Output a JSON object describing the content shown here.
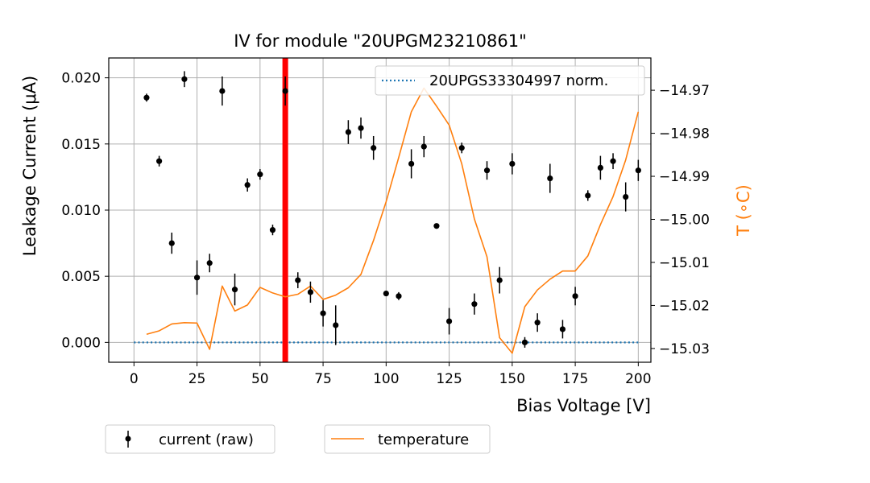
{
  "chart_data": {
    "type": "scatter",
    "title": "IV for module \"20UPGM23210861\"",
    "xlabel": "Bias Voltage [V]",
    "ylabel": "Leakage Current (μA)",
    "y2label": "T (∘C)",
    "xlim": [
      -10,
      205
    ],
    "ylim": [
      -0.0015,
      0.0215
    ],
    "y2lim": [
      -15.0332,
      -14.9625
    ],
    "xticks": [
      0,
      25,
      50,
      75,
      100,
      125,
      150,
      175,
      200
    ],
    "yticks": [
      "0.000",
      "0.005",
      "0.010",
      "0.015",
      "0.020"
    ],
    "y2ticks": [
      "−15.03",
      "−15.02",
      "−15.01",
      "−15.00",
      "−14.99",
      "−14.98",
      "−14.97"
    ],
    "grid": true,
    "legend_inside": {
      "position": "top-right",
      "label": "20UPGS33304997 norm."
    },
    "legend_below": [
      {
        "label": "current (raw)"
      },
      {
        "label": "temperature"
      }
    ],
    "colors": {
      "current": "#000000",
      "temperature": "#ff7f0e",
      "reference": "#1f77b4",
      "marker_line": "#ff0000",
      "y2axis_label": "#ff7f0e"
    },
    "marker_line_x": 60,
    "series": [
      {
        "name": "current (raw)",
        "x": [
          5,
          10,
          15,
          20,
          25,
          30,
          35,
          40,
          45,
          50,
          55,
          60,
          65,
          70,
          75,
          80,
          85,
          90,
          95,
          100,
          105,
          110,
          115,
          120,
          125,
          130,
          135,
          140,
          145,
          150,
          155,
          160,
          165,
          170,
          175,
          180,
          185,
          190,
          195,
          200
        ],
        "y": [
          0.0185,
          0.0137,
          0.0075,
          0.0199,
          0.0049,
          0.006,
          0.019,
          0.004,
          0.0119,
          0.0127,
          0.0085,
          0.019,
          0.0047,
          0.0038,
          0.0022,
          0.0013,
          0.0159,
          0.0162,
          0.0147,
          0.0037,
          0.0035,
          0.0135,
          0.0148,
          0.0088,
          0.0016,
          0.0147,
          0.0029,
          0.013,
          0.0047,
          0.0135,
          0.0,
          0.0015,
          0.0124,
          0.001,
          0.0035,
          0.0111,
          0.0132,
          0.0137,
          0.011,
          0.013
        ],
        "err": [
          0.0003,
          0.0004,
          0.0008,
          0.0006,
          0.0013,
          0.0007,
          0.0011,
          0.0012,
          0.0005,
          0.0004,
          0.0004,
          0.0011,
          0.0006,
          0.0008,
          0.001,
          0.0015,
          0.0009,
          0.0008,
          0.0009,
          0.0001,
          0.0003,
          0.0011,
          0.0008,
          0.0001,
          0.001,
          0.0004,
          0.0008,
          0.0007,
          0.001,
          0.0008,
          0.0004,
          0.0007,
          0.0011,
          0.0007,
          0.0007,
          0.0004,
          0.0009,
          0.0006,
          0.0011,
          0.0008
        ]
      },
      {
        "name": "temperature",
        "axis": "right",
        "x": [
          5,
          10,
          15,
          20,
          25,
          30,
          35,
          40,
          45,
          50,
          55,
          60,
          65,
          70,
          75,
          80,
          85,
          90,
          95,
          100,
          105,
          110,
          115,
          120,
          125,
          130,
          135,
          140,
          145,
          150,
          155,
          160,
          165,
          170,
          175,
          180,
          185,
          190,
          195,
          200
        ],
        "y": [
          -15.0267,
          -15.0259,
          -15.0243,
          -15.024,
          -15.0241,
          -15.0302,
          -15.0155,
          -15.0213,
          -15.0199,
          -15.0158,
          -15.0171,
          -15.018,
          -15.0174,
          -15.0155,
          -15.0186,
          -15.0176,
          -15.0159,
          -15.0128,
          -15.0049,
          -14.9959,
          -14.9856,
          -14.975,
          -14.9695,
          -14.9737,
          -14.9781,
          -14.9871,
          -14.9999,
          -15.0087,
          -15.0275,
          -15.0311,
          -15.0203,
          -15.0164,
          -15.0139,
          -15.012,
          -15.012,
          -15.0085,
          -15.0012,
          -14.9947,
          -14.9862,
          -14.975
        ]
      },
      {
        "name": "20UPGS33304997 norm.",
        "x": [
          0,
          200
        ],
        "y": [
          0,
          0
        ]
      }
    ]
  }
}
